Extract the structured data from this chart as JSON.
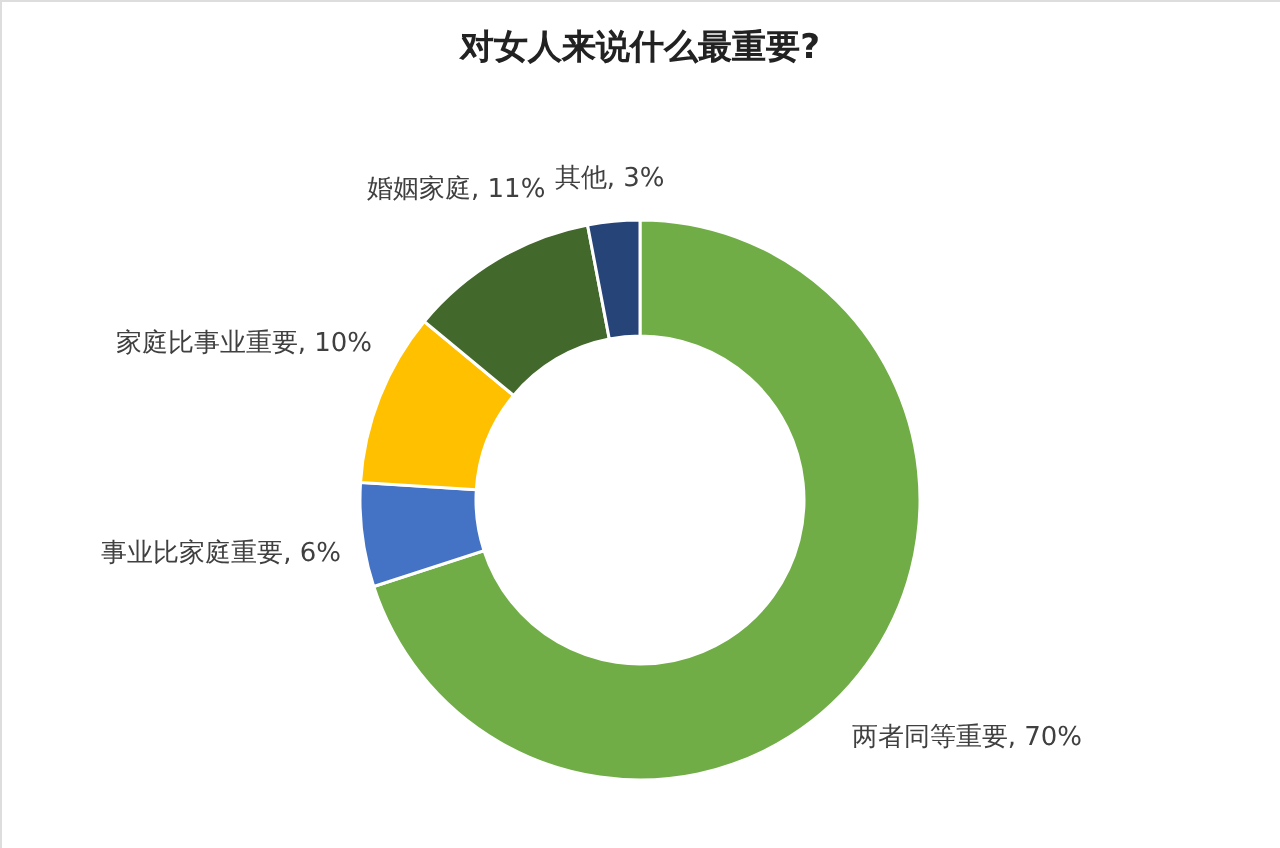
{
  "chart_data": {
    "type": "donut",
    "title": "对女人来说什么最重要?",
    "categories": [
      "两者同等重要",
      "事业比家庭重要",
      "家庭比事业重要",
      "婚姻家庭",
      "其他"
    ],
    "values": [
      70,
      6,
      10,
      11,
      3
    ],
    "value_labels": [
      "70%",
      "6%",
      "10%",
      "11%",
      "3%"
    ],
    "colors": [
      "#70ad47",
      "#4472c4",
      "#ffc000",
      "#43682b",
      "#264478"
    ]
  }
}
